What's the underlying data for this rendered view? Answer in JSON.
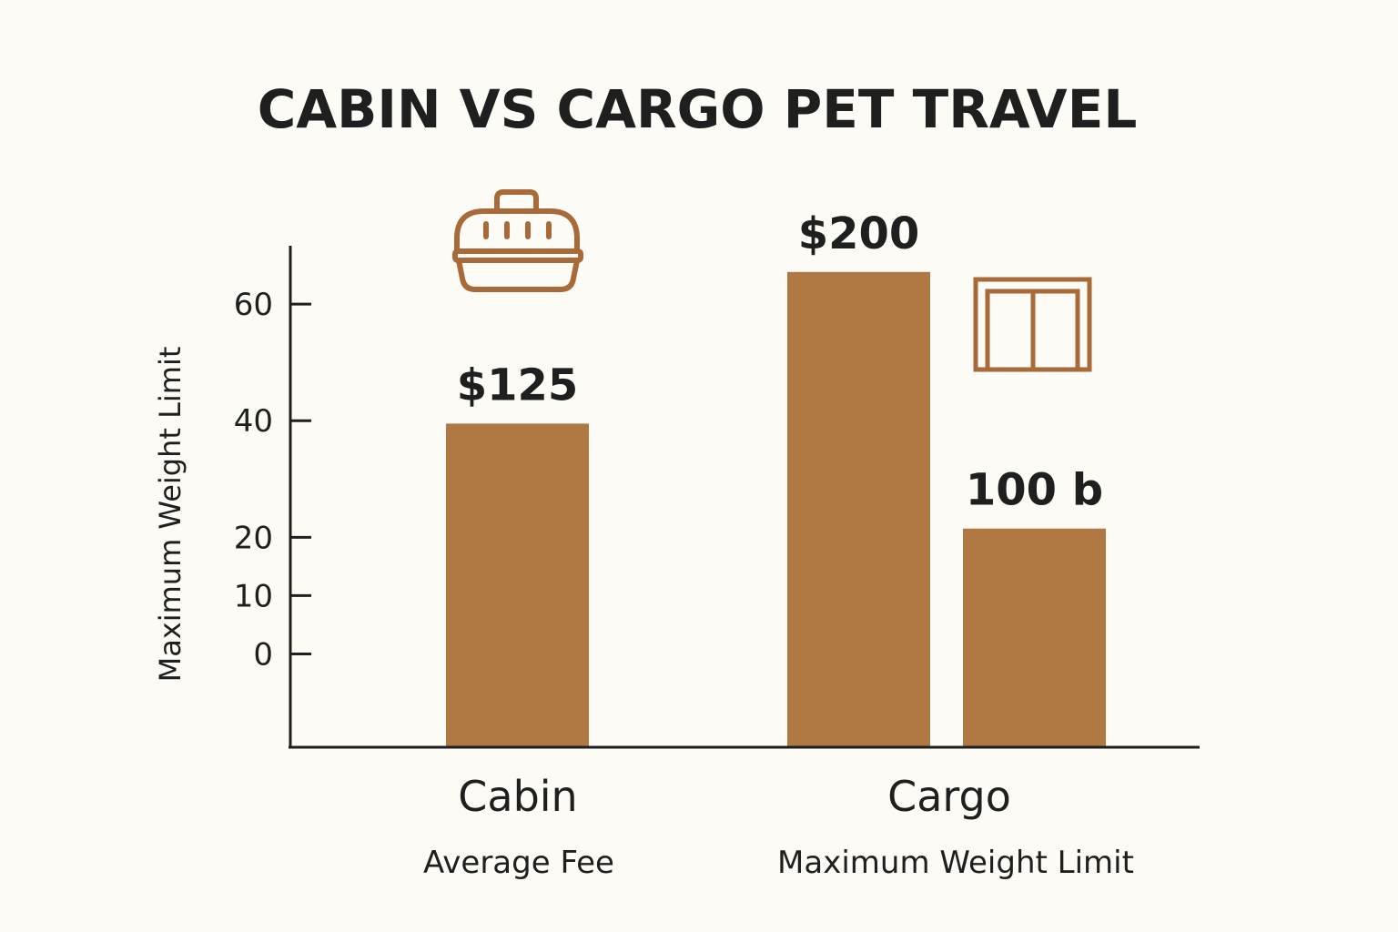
{
  "chart_data": {
    "type": "bar",
    "title": "CABIN VS CARGO PET TRAVEL",
    "ylabel": "Maximum Weight Limit",
    "ylim": [
      -16,
      70
    ],
    "yticks": [
      {
        "label": "60",
        "value": 60
      },
      {
        "label": "40",
        "value": 40
      },
      {
        "label": "20",
        "value": 20
      },
      {
        "label": "10",
        "value": 10
      },
      {
        "label": "0",
        "value": 0
      }
    ],
    "grid": false,
    "categories": [
      {
        "label": "Cabin",
        "sublabel": "Average Fee",
        "icon": "pet-carrier-icon"
      },
      {
        "label": "Cargo",
        "sublabel": "Maximum Weight Limit",
        "icon": "crate-icon"
      }
    ],
    "bars": [
      {
        "category": "Cabin",
        "value": 39.5,
        "label": "$125"
      },
      {
        "category": "Cargo",
        "value": 65.5,
        "label": "$200"
      },
      {
        "category": "Cargo",
        "value": 21.5,
        "label": "100 b"
      }
    ],
    "colors": {
      "bar": "#b07843",
      "icon": "#a86a38",
      "axis": "#1f1f1f",
      "background": "#fcfbf5"
    }
  }
}
